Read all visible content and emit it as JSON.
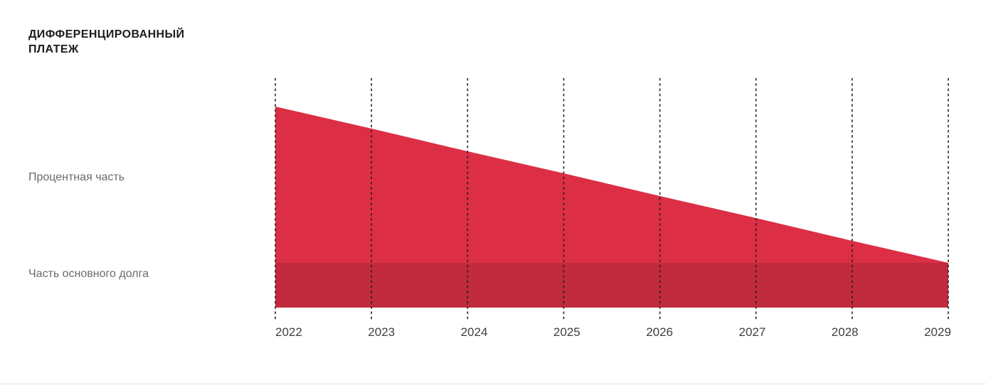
{
  "title": "ДИФФЕРЕНЦИРОВАННЫЙ ПЛАТЕЖ",
  "series_labels": {
    "interest": "Процентная часть",
    "principal": "Часть основного долга"
  },
  "colors": {
    "background": "#ffffff",
    "interest_area": "#dc2f45",
    "principal_area": "#c12a3c",
    "gridline": "#221f1f",
    "title_text": "#1c1c1c",
    "side_label_text": "#6b6b6b",
    "tick_text": "#3f3f3f"
  },
  "chart_data": {
    "type": "area",
    "stacked": true,
    "title": "ДИФФЕРЕНЦИРОВАННЫЙ ПЛАТЕЖ",
    "categories": [
      "2022",
      "2023",
      "2024",
      "2025",
      "2026",
      "2027",
      "2028",
      "2029"
    ],
    "series": [
      {
        "name": "Часть основного долга",
        "role": "principal",
        "values": [
          63,
          63,
          63,
          63,
          63,
          63,
          63,
          63
        ]
      },
      {
        "name": "Процентная часть",
        "role": "interest",
        "values": [
          220,
          189,
          157,
          126,
          94,
          63,
          31,
          0
        ]
      }
    ],
    "xlabel": "",
    "ylabel": "",
    "units": "relative payment size",
    "grid": "vertical-dashed",
    "legend_position": "left-side-labels",
    "note": "Interest portion declines linearly to zero by 2029; principal portion stays constant"
  }
}
